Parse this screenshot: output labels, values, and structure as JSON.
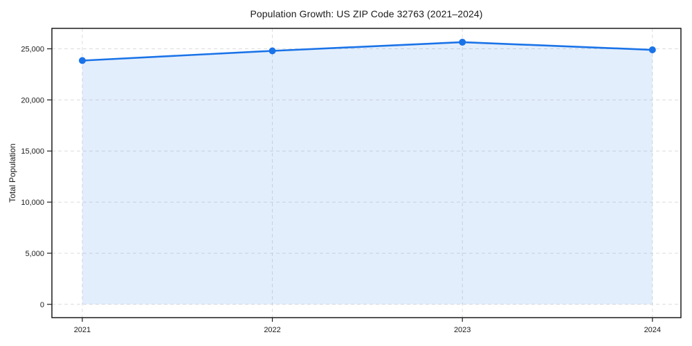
{
  "page": {
    "background": "#ffffff"
  },
  "chart_data": {
    "type": "line",
    "title": "Population Growth: US ZIP Code 32763 (2021–2024)",
    "xlabel": "",
    "ylabel": "Total Population",
    "x": [
      2021,
      2022,
      2023,
      2024
    ],
    "x_tick_labels": [
      "2021",
      "2022",
      "2023",
      "2024"
    ],
    "series": [
      {
        "name": "Total Population",
        "values": [
          23850,
          24800,
          25650,
          24900
        ]
      }
    ],
    "y_ticks": [
      0,
      5000,
      10000,
      15000,
      20000,
      25000
    ],
    "y_tick_labels": [
      "0",
      "5,000",
      "10,000",
      "15,000",
      "20,000",
      "25,000"
    ],
    "xlim": [
      2020.84,
      2024.15
    ],
    "ylim": [
      -1300,
      27000
    ],
    "grid": true,
    "grid_style": "dashed",
    "legend": false,
    "area_fill": true,
    "marker": "circle",
    "colors": {
      "line": "#1a73e8",
      "marker": "#1a73e8",
      "fill": "#1a73e8",
      "fill_opacity": 0.12,
      "grid": "#dcdcdc",
      "spine": "#1a1a1a",
      "text": "#1a1a1a"
    }
  }
}
